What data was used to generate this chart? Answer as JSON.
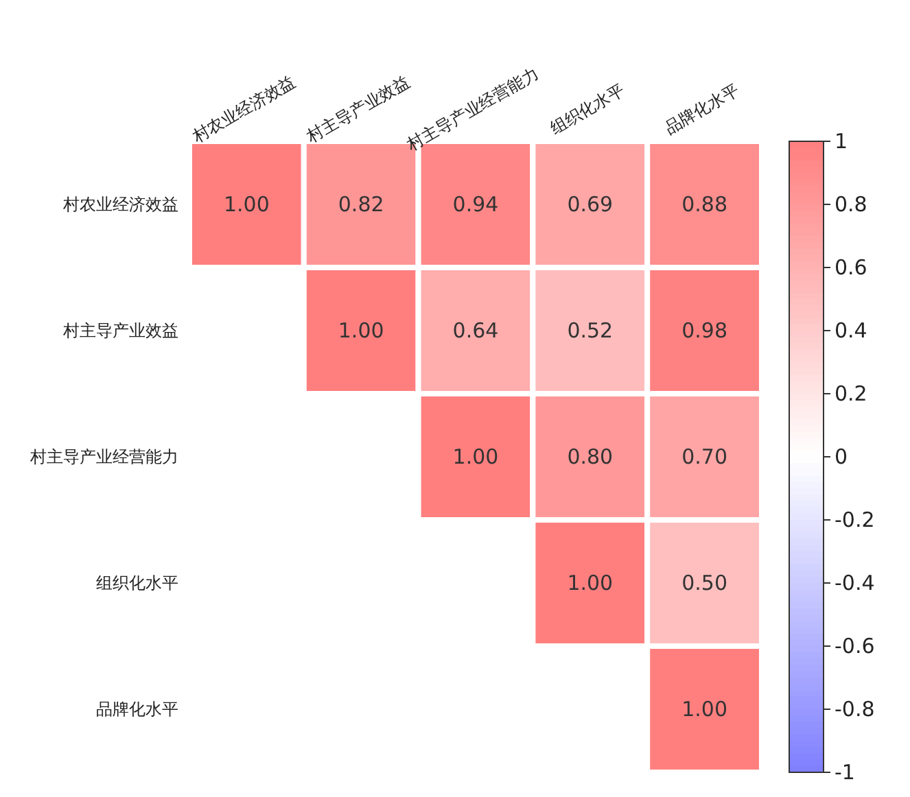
{
  "chart_data": {
    "type": "heatmap",
    "categories": [
      "村农业经济效益",
      "村主导产业效益",
      "村主导产业经营能力",
      "组织化水平",
      "品牌化水平"
    ],
    "y_categories": [
      "村农业经济效益",
      "村主导产业效益",
      "村主导产业经营能力",
      "组织化水平",
      "品牌化水平"
    ],
    "cells": [
      [
        1.0,
        0.82,
        0.94,
        0.69,
        0.88
      ],
      [
        null,
        1.0,
        0.64,
        0.52,
        0.98
      ],
      [
        null,
        null,
        1.0,
        0.8,
        0.7
      ],
      [
        null,
        null,
        null,
        1.0,
        0.5
      ],
      [
        null,
        null,
        null,
        null,
        1.0
      ]
    ],
    "cell_labels": [
      [
        "1.00",
        "0.82",
        "0.94",
        "0.69",
        "0.88"
      ],
      [
        null,
        "1.00",
        "0.64",
        "0.52",
        "0.98"
      ],
      [
        null,
        null,
        "1.00",
        "0.80",
        "0.70"
      ],
      [
        null,
        null,
        null,
        "1.00",
        "0.50"
      ],
      [
        null,
        null,
        null,
        null,
        "1.00"
      ]
    ],
    "clim": [
      -1,
      1
    ],
    "cticks": [
      -1,
      -0.8,
      -0.6,
      -0.4,
      -0.2,
      0,
      0.2,
      0.4,
      0.6,
      0.8,
      1
    ]
  }
}
